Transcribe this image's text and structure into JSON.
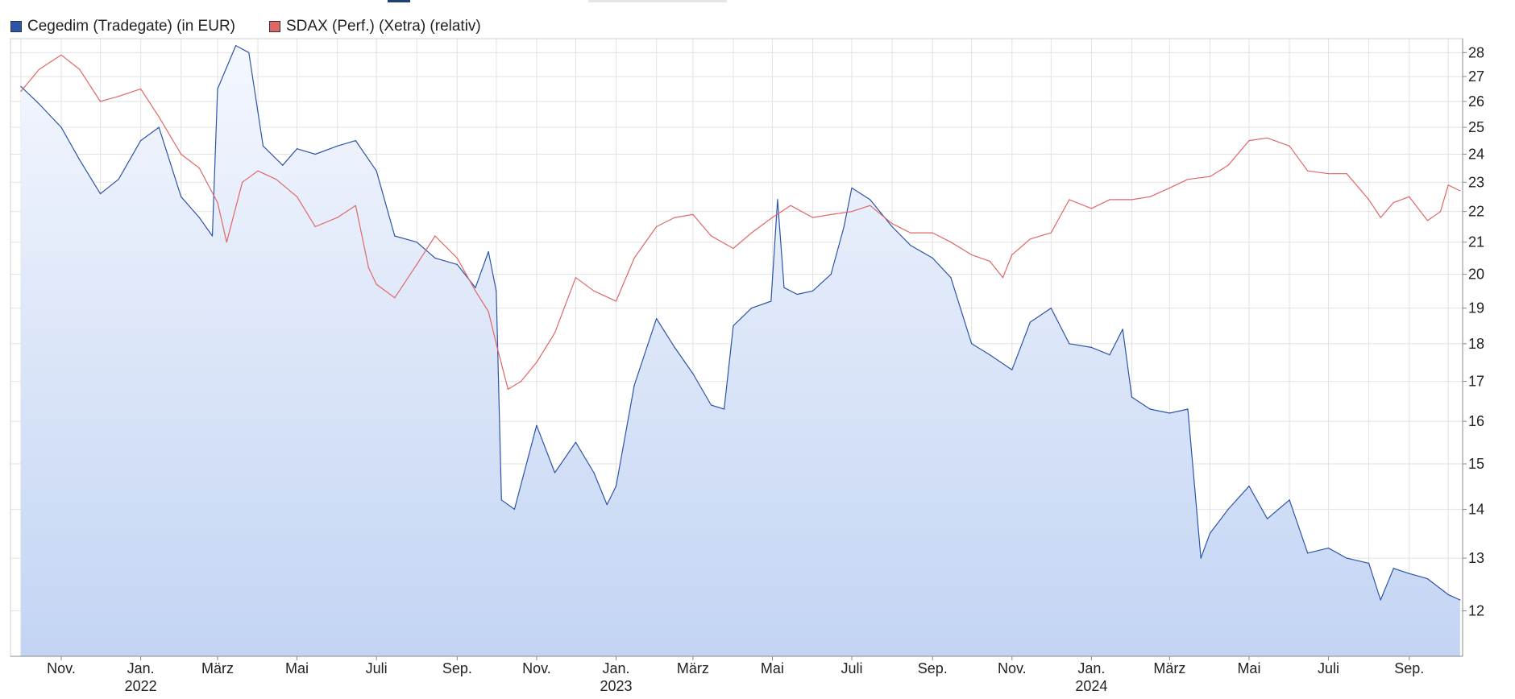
{
  "chart_data": {
    "type": "line",
    "title": "",
    "xlabel": "",
    "ylabel": "",
    "ylim": [
      11.2,
      28.6
    ],
    "y_scale": "log",
    "grid": true,
    "legend_position": "top-left",
    "y_ticks": [
      "28",
      "27",
      "26",
      "25",
      "24",
      "23",
      "22",
      "21",
      "20",
      "19",
      "18",
      "17",
      "16",
      "15",
      "14",
      "13",
      "12"
    ],
    "x_month_ticks": [
      "Nov.",
      "Jan.",
      "März",
      "Mai",
      "Juli",
      "Sep.",
      "Nov.",
      "Jan.",
      "März",
      "Mai",
      "Juli",
      "Sep.",
      "Nov.",
      "Jan.",
      "März",
      "Mai",
      "Juli",
      "Sep."
    ],
    "x_year_ticks": [
      "2022",
      "2023",
      "2024"
    ],
    "series": [
      {
        "name": "Cegedim (Tradegate) (in EUR)",
        "color": "#2b55a8",
        "fill": true,
        "points": [
          [
            "2021-10-01",
            26.6
          ],
          [
            "2021-10-15",
            25.9
          ],
          [
            "2021-11-01",
            25.0
          ],
          [
            "2021-11-15",
            23.8
          ],
          [
            "2021-12-01",
            22.6
          ],
          [
            "2021-12-15",
            23.1
          ],
          [
            "2022-01-01",
            24.5
          ],
          [
            "2022-01-15",
            25.0
          ],
          [
            "2022-02-01",
            22.5
          ],
          [
            "2022-02-15",
            21.8
          ],
          [
            "2022-02-25",
            21.2
          ],
          [
            "2022-03-01",
            26.5
          ],
          [
            "2022-03-15",
            28.3
          ],
          [
            "2022-03-25",
            28.0
          ],
          [
            "2022-04-05",
            24.3
          ],
          [
            "2022-04-20",
            23.6
          ],
          [
            "2022-05-01",
            24.2
          ],
          [
            "2022-05-15",
            24.0
          ],
          [
            "2022-06-01",
            24.3
          ],
          [
            "2022-06-15",
            24.5
          ],
          [
            "2022-07-01",
            23.4
          ],
          [
            "2022-07-15",
            21.2
          ],
          [
            "2022-08-01",
            21.0
          ],
          [
            "2022-08-15",
            20.5
          ],
          [
            "2022-09-01",
            20.3
          ],
          [
            "2022-09-15",
            19.6
          ],
          [
            "2022-09-25",
            20.7
          ],
          [
            "2022-10-01",
            19.5
          ],
          [
            "2022-10-05",
            14.2
          ],
          [
            "2022-10-15",
            14.0
          ],
          [
            "2022-11-01",
            15.9
          ],
          [
            "2022-11-15",
            14.8
          ],
          [
            "2022-12-01",
            15.5
          ],
          [
            "2022-12-15",
            14.8
          ],
          [
            "2022-12-25",
            14.1
          ],
          [
            "2023-01-01",
            14.5
          ],
          [
            "2023-01-15",
            16.9
          ],
          [
            "2023-02-01",
            18.7
          ],
          [
            "2023-02-15",
            17.9
          ],
          [
            "2023-03-01",
            17.2
          ],
          [
            "2023-03-15",
            16.4
          ],
          [
            "2023-03-25",
            16.3
          ],
          [
            "2023-04-01",
            18.5
          ],
          [
            "2023-04-15",
            19.0
          ],
          [
            "2023-04-30",
            19.2
          ],
          [
            "2023-05-05",
            22.4
          ],
          [
            "2023-05-10",
            19.6
          ],
          [
            "2023-05-20",
            19.4
          ],
          [
            "2023-06-01",
            19.5
          ],
          [
            "2023-06-15",
            20.0
          ],
          [
            "2023-06-25",
            21.5
          ],
          [
            "2023-07-01",
            22.8
          ],
          [
            "2023-07-15",
            22.4
          ],
          [
            "2023-08-01",
            21.5
          ],
          [
            "2023-08-15",
            20.9
          ],
          [
            "2023-09-01",
            20.5
          ],
          [
            "2023-09-15",
            19.9
          ],
          [
            "2023-10-01",
            18.0
          ],
          [
            "2023-10-15",
            17.7
          ],
          [
            "2023-11-01",
            17.3
          ],
          [
            "2023-11-15",
            18.6
          ],
          [
            "2023-12-01",
            19.0
          ],
          [
            "2023-12-15",
            18.0
          ],
          [
            "2024-01-01",
            17.9
          ],
          [
            "2024-01-15",
            17.7
          ],
          [
            "2024-01-25",
            18.4
          ],
          [
            "2024-02-01",
            16.6
          ],
          [
            "2024-02-15",
            16.3
          ],
          [
            "2024-03-01",
            16.2
          ],
          [
            "2024-03-15",
            16.3
          ],
          [
            "2024-03-25",
            13.0
          ],
          [
            "2024-04-01",
            13.5
          ],
          [
            "2024-04-15",
            14.0
          ],
          [
            "2024-05-01",
            14.5
          ],
          [
            "2024-05-15",
            13.8
          ],
          [
            "2024-06-01",
            14.2
          ],
          [
            "2024-06-15",
            13.1
          ],
          [
            "2024-07-01",
            13.2
          ],
          [
            "2024-07-15",
            13.0
          ],
          [
            "2024-08-01",
            12.9
          ],
          [
            "2024-08-10",
            12.2
          ],
          [
            "2024-08-20",
            12.8
          ],
          [
            "2024-09-01",
            12.7
          ],
          [
            "2024-09-15",
            12.6
          ],
          [
            "2024-10-01",
            12.3
          ],
          [
            "2024-10-10",
            12.2
          ]
        ]
      },
      {
        "name": "SDAX (Perf.) (Xetra) (relativ)",
        "color": "#e06666",
        "fill": false,
        "points": [
          [
            "2021-10-01",
            26.4
          ],
          [
            "2021-10-15",
            27.3
          ],
          [
            "2021-11-01",
            27.9
          ],
          [
            "2021-11-15",
            27.3
          ],
          [
            "2021-12-01",
            26.0
          ],
          [
            "2021-12-15",
            26.2
          ],
          [
            "2022-01-01",
            26.5
          ],
          [
            "2022-01-15",
            25.4
          ],
          [
            "2022-02-01",
            24.0
          ],
          [
            "2022-02-15",
            23.5
          ],
          [
            "2022-03-01",
            22.3
          ],
          [
            "2022-03-08",
            21.0
          ],
          [
            "2022-03-20",
            23.0
          ],
          [
            "2022-04-01",
            23.4
          ],
          [
            "2022-04-15",
            23.1
          ],
          [
            "2022-05-01",
            22.5
          ],
          [
            "2022-05-15",
            21.5
          ],
          [
            "2022-06-01",
            21.8
          ],
          [
            "2022-06-15",
            22.2
          ],
          [
            "2022-06-25",
            20.2
          ],
          [
            "2022-07-01",
            19.7
          ],
          [
            "2022-07-15",
            19.3
          ],
          [
            "2022-08-01",
            20.3
          ],
          [
            "2022-08-15",
            21.2
          ],
          [
            "2022-09-01",
            20.5
          ],
          [
            "2022-09-15",
            19.5
          ],
          [
            "2022-09-25",
            18.9
          ],
          [
            "2022-10-01",
            18.0
          ],
          [
            "2022-10-10",
            16.8
          ],
          [
            "2022-10-20",
            17.0
          ],
          [
            "2022-11-01",
            17.5
          ],
          [
            "2022-11-15",
            18.3
          ],
          [
            "2022-12-01",
            19.9
          ],
          [
            "2022-12-15",
            19.5
          ],
          [
            "2023-01-01",
            19.2
          ],
          [
            "2023-01-15",
            20.5
          ],
          [
            "2023-02-01",
            21.5
          ],
          [
            "2023-02-15",
            21.8
          ],
          [
            "2023-03-01",
            21.9
          ],
          [
            "2023-03-15",
            21.2
          ],
          [
            "2023-04-01",
            20.8
          ],
          [
            "2023-04-15",
            21.3
          ],
          [
            "2023-05-01",
            21.8
          ],
          [
            "2023-05-15",
            22.2
          ],
          [
            "2023-06-01",
            21.8
          ],
          [
            "2023-06-15",
            21.9
          ],
          [
            "2023-07-01",
            22.0
          ],
          [
            "2023-07-15",
            22.2
          ],
          [
            "2023-08-01",
            21.6
          ],
          [
            "2023-08-15",
            21.3
          ],
          [
            "2023-09-01",
            21.3
          ],
          [
            "2023-09-15",
            21.0
          ],
          [
            "2023-10-01",
            20.6
          ],
          [
            "2023-10-15",
            20.4
          ],
          [
            "2023-10-25",
            19.9
          ],
          [
            "2023-11-01",
            20.6
          ],
          [
            "2023-11-15",
            21.1
          ],
          [
            "2023-12-01",
            21.3
          ],
          [
            "2023-12-15",
            22.4
          ],
          [
            "2024-01-01",
            22.1
          ],
          [
            "2024-01-15",
            22.4
          ],
          [
            "2024-02-01",
            22.4
          ],
          [
            "2024-02-15",
            22.5
          ],
          [
            "2024-03-01",
            22.8
          ],
          [
            "2024-03-15",
            23.1
          ],
          [
            "2024-04-01",
            23.2
          ],
          [
            "2024-04-15",
            23.6
          ],
          [
            "2024-05-01",
            24.5
          ],
          [
            "2024-05-15",
            24.6
          ],
          [
            "2024-06-01",
            24.3
          ],
          [
            "2024-06-15",
            23.4
          ],
          [
            "2024-07-01",
            23.3
          ],
          [
            "2024-07-15",
            23.3
          ],
          [
            "2024-08-01",
            22.4
          ],
          [
            "2024-08-10",
            21.8
          ],
          [
            "2024-08-20",
            22.3
          ],
          [
            "2024-09-01",
            22.5
          ],
          [
            "2024-09-15",
            21.7
          ],
          [
            "2024-09-25",
            22.0
          ],
          [
            "2024-10-01",
            22.9
          ],
          [
            "2024-10-10",
            22.7
          ]
        ]
      }
    ]
  },
  "legend": {
    "items": [
      {
        "label": "Cegedim (Tradegate) (in EUR)",
        "color": "#2b55a8"
      },
      {
        "label": "SDAX (Perf.) (Xetra) (relativ)",
        "color": "#e06666"
      }
    ]
  },
  "colors": {
    "grid": "#e2e2e2",
    "fill_top": "#f4f7fe",
    "fill_bottom": "#c3d4f3",
    "top_accent": "#1f3f75",
    "top_tab": "#e4e4e4"
  }
}
